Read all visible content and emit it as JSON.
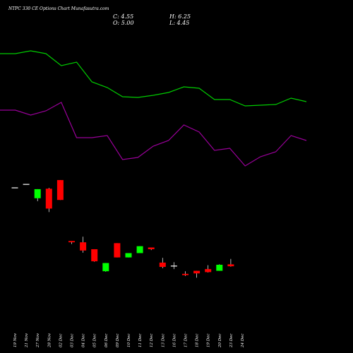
{
  "header": {
    "title": "NTPC 330  CE Options Chart Munafasutra.com",
    "close_label": "C: 4.55",
    "open_label": "O: 5.00",
    "high_label": "H: 6.25",
    "low_label": "L: 4.45"
  },
  "chart_data": {
    "type": "candlestick",
    "title": "NTPC 330  CE Options Chart Munafasutra.com",
    "categories": [
      "19 Nov",
      "21 Nov",
      "27 Nov",
      "28 Nov",
      "02 Dec",
      "03 Dec",
      "04 Dec",
      "05 Dec",
      "06 Dec",
      "09 Dec",
      "10 Dec",
      "11 Dec",
      "12 Dec",
      "13 Dec",
      "16 Dec",
      "17 Dec",
      "18 Dec",
      "19 Dec",
      "20 Dec",
      "23 Dec",
      "24 Dec"
    ],
    "candles": [
      {
        "open": 22.8,
        "high": 22.8,
        "low": 22.8,
        "close": 22.8
      },
      {
        "open": 23.6,
        "high": 23.6,
        "low": 23.6,
        "close": 23.6
      },
      {
        "open": 20.3,
        "high": 22.4,
        "low": 19.6,
        "close": 22.4
      },
      {
        "open": 22.5,
        "high": 22.7,
        "low": 17.1,
        "close": 17.9
      },
      {
        "open": 24.5,
        "high": 24.5,
        "low": 19.9,
        "close": 19.9
      },
      {
        "open": 10.4,
        "high": 10.4,
        "low": 9.7,
        "close": 10.1
      },
      {
        "open": 10.1,
        "high": 11.4,
        "low": 7.7,
        "close": 8.2
      },
      {
        "open": 8.5,
        "high": 8.5,
        "low": 5.6,
        "close": 5.7
      },
      {
        "open": 3.4,
        "high": 5.3,
        "low": 3.3,
        "close": 5.3
      },
      {
        "open": 9.9,
        "high": 9.9,
        "low": 6.6,
        "close": 6.6
      },
      {
        "open": 6.6,
        "high": 7.6,
        "low": 6.6,
        "close": 7.6
      },
      {
        "open": 7.6,
        "high": 9.2,
        "low": 7.6,
        "close": 9.2
      },
      {
        "open": 8.9,
        "high": 8.9,
        "low": 8.3,
        "close": 8.5
      },
      {
        "open": 5.4,
        "high": 6.5,
        "low": 4.1,
        "close": 4.4
      },
      {
        "open": 4.7,
        "high": 5.5,
        "low": 3.9,
        "close": 4.7
      },
      {
        "open": 2.8,
        "high": 3.4,
        "low": 2.3,
        "close": 2.5
      },
      {
        "open": 3.5,
        "high": 3.5,
        "low": 1.9,
        "close": 2.9
      },
      {
        "open": 3.9,
        "high": 4.8,
        "low": 3.1,
        "close": 3.2
      },
      {
        "open": 3.5,
        "high": 5.0,
        "low": 3.5,
        "close": 4.9
      },
      {
        "open": 5.0,
        "high": 6.25,
        "low": 4.45,
        "close": 4.55
      }
    ],
    "candle_dates": [
      "19 Nov",
      "21 Nov",
      "27 Nov",
      "28 Nov",
      "02 Dec",
      "03 Dec",
      "04 Dec",
      "05 Dec",
      "06 Dec",
      "09 Dec",
      "10 Dec",
      "11 Dec",
      "12 Dec",
      "13 Dec",
      "16 Dec",
      "17 Dec",
      "18 Dec",
      "19 Dec",
      "20 Dec",
      "23 Dec"
    ],
    "green_line": [
      76,
      76,
      72,
      76,
      93,
      88,
      116,
      124,
      137,
      138,
      135,
      131,
      123,
      125,
      141,
      141,
      150,
      149,
      148,
      139,
      144
    ],
    "purple_line": [
      156,
      156,
      163,
      157,
      145,
      195,
      195,
      192,
      226,
      223,
      207,
      199,
      177,
      187,
      213,
      210,
      235,
      222,
      215,
      192,
      199
    ],
    "colors": {
      "background": "#000000",
      "up": "#00ff00",
      "down": "#ff0000",
      "upper_band": "#00cc00",
      "lower_band": "#990099",
      "text": "#ffffff"
    },
    "grid": false,
    "legend": "none"
  }
}
